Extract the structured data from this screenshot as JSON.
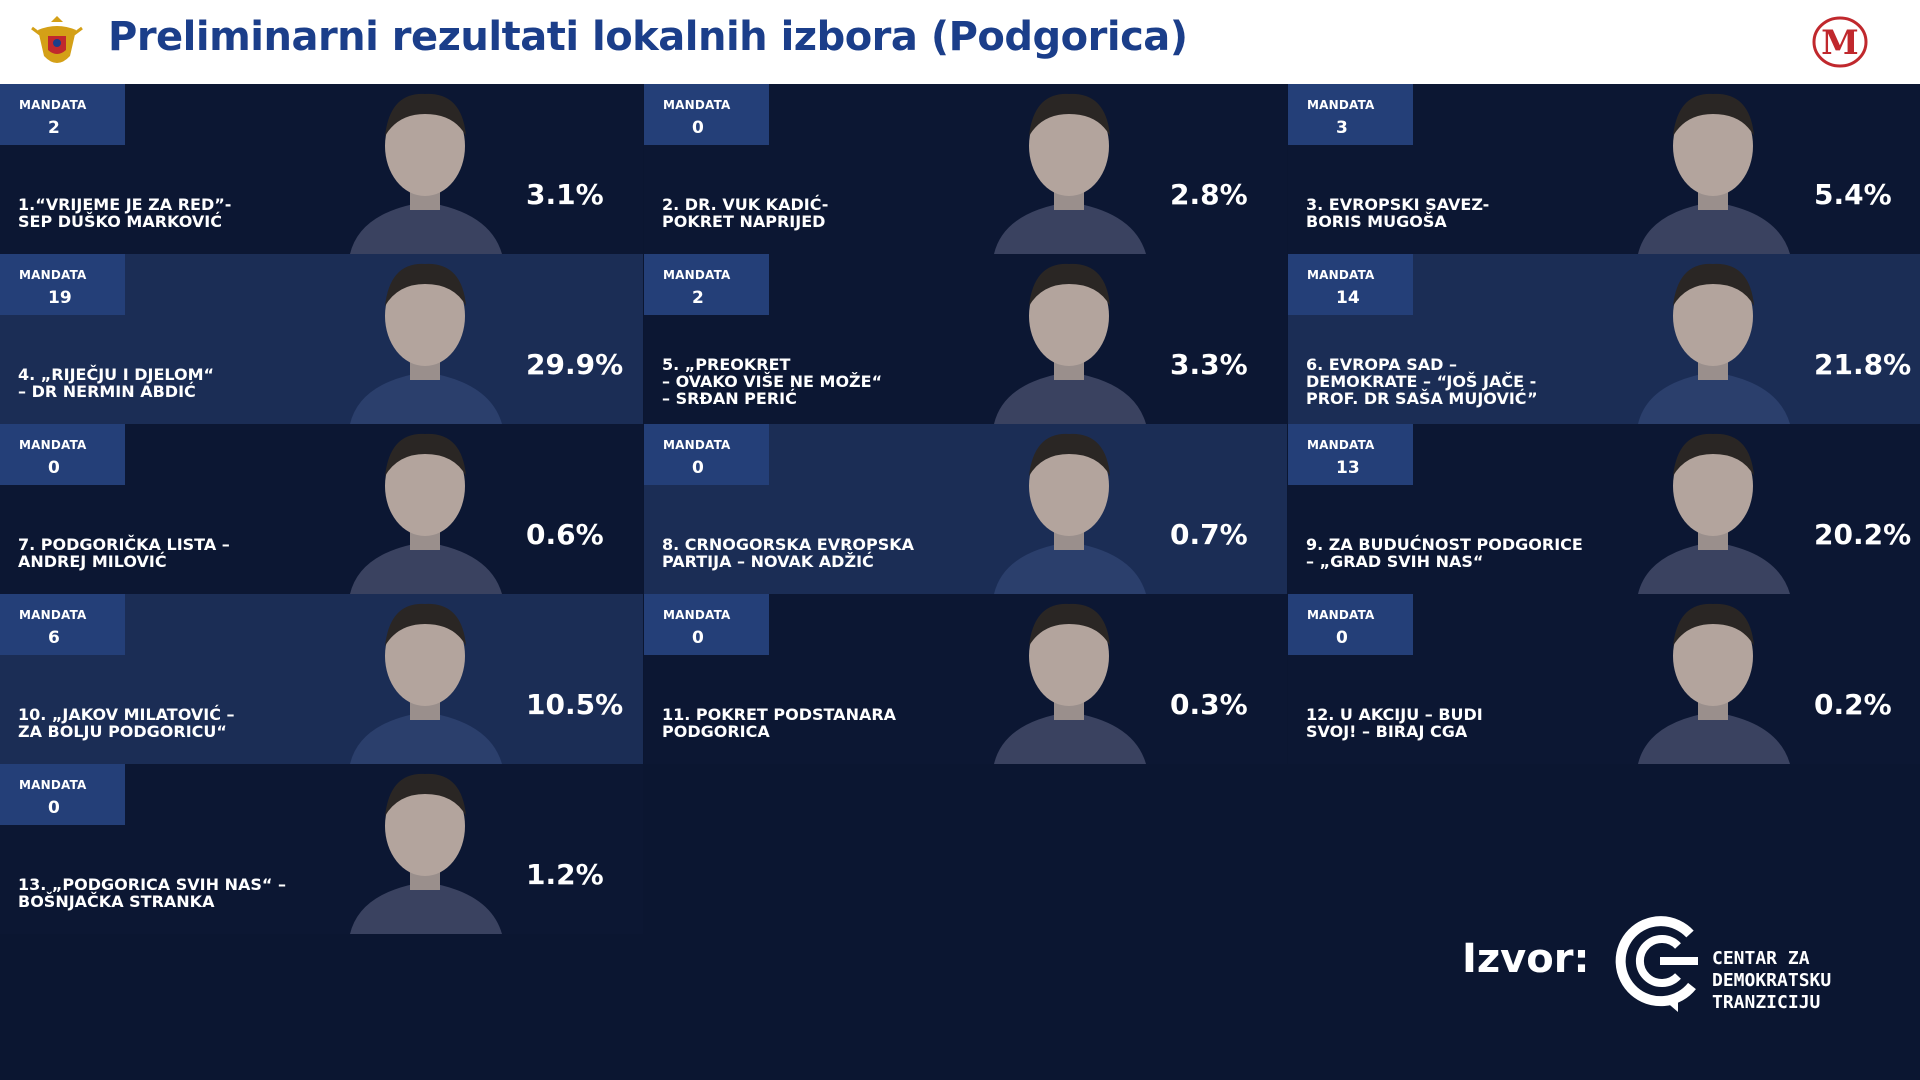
{
  "header": {
    "title": "Preliminarni rezultati lokalnih izbora (Podgorica)",
    "left_logo": "montenegro-coat-of-arms-icon",
    "right_logo_letter": "M"
  },
  "mandate_label": "MANDATA",
  "lists": [
    {
      "mandates": "2",
      "name": "1.“VRIJEME JE ZA RED”-\nSEP DUŠKO MARKOVIĆ",
      "percent": "3.1%"
    },
    {
      "mandates": "0",
      "name": "2. DR. VUK KADIĆ-\nPOKRET NAPRIJED",
      "percent": "2.8%"
    },
    {
      "mandates": "3",
      "name": "3. EVROPSKI SAVEZ-\nBORIS MUGOŠA",
      "percent": "5.4%"
    },
    {
      "mandates": "19",
      "name": "4. „RIJEČJU I DJELOM“\n– DR NERMIN ABDIĆ",
      "percent": "29.9%"
    },
    {
      "mandates": "2",
      "name": "5. „PREOKRET\n– OVAKO VIŠE NE MOŽE“\n– SRĐAN PERIĆ",
      "percent": "3.3%"
    },
    {
      "mandates": "14",
      "name": "6. EVROPA SAD –\nDEMOKRATE – “JOŠ JAČE -\nPROF. DR SAŠA MUJOVIĆ”",
      "percent": "21.8%"
    },
    {
      "mandates": "0",
      "name": "7. PODGORIČKA LISTA –\nANDREJ MILOVIĆ",
      "percent": "0.6%"
    },
    {
      "mandates": "0",
      "name": "8. CRNOGORSKA EVROPSKA\nPARTIJA – NOVAK ADŽiĆ",
      "percent": "0.7%"
    },
    {
      "mandates": "13",
      "name": "9. ZA BUDUĆNOST PODGORICE\n– „GRAD SVIH NAS“",
      "percent": "20.2%"
    },
    {
      "mandates": "6",
      "name": "10. „JAKOV MILATOVIĆ –\nZA BOLJU PODGORICU“",
      "percent": "10.5%"
    },
    {
      "mandates": "0",
      "name": "11. POKRET PODSTANARA\nPODGORICA",
      "percent": "0.3%"
    },
    {
      "mandates": "0",
      "name": "12. U AKCIJU – BUDI\nSVOJ! – BIRAJ CGA",
      "percent": "0.2%"
    },
    {
      "mandates": "0",
      "name": "13. „PODGORICA SVIH NAS“ –\nBOŠNJAČKA STRANKA",
      "percent": "1.2%"
    }
  ],
  "footer": {
    "source_label": "Izvor:",
    "org_name": "CENTAR ZA\nDEMOKRATSKU\nTRANZICIJU"
  },
  "colors": {
    "background": "#0b1631",
    "cell_dark": "#0c1733",
    "cell_light": "#1b2d55",
    "badge": "#243f78",
    "title": "#1b3e8a",
    "logo_red": "#c0282d"
  }
}
